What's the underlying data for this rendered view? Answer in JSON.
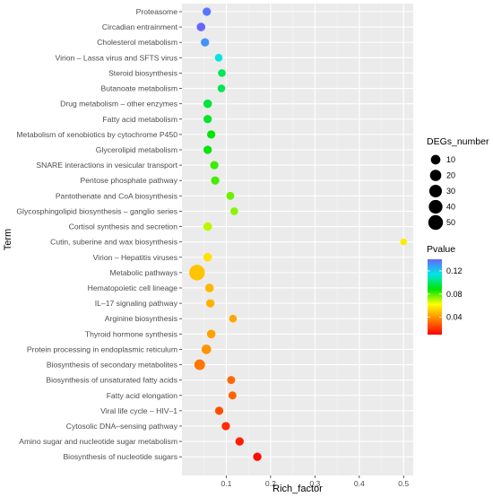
{
  "chart_data": {
    "type": "scatter",
    "title": "",
    "xlabel": "Rich_factor",
    "ylabel": "Term",
    "xlim": [
      0.0,
      0.51
    ],
    "x_ticks": [
      0.1,
      0.2,
      0.3,
      0.4,
      0.5
    ],
    "x_tick_labels": [
      "0.1",
      "0.2",
      "0.3",
      "0.4",
      "0.5"
    ],
    "grid": true,
    "legend_placement": "right",
    "size_legend": {
      "title": "DEGs_number",
      "values": [
        10,
        20,
        30,
        40,
        50
      ],
      "labels": [
        "10",
        "20",
        "30",
        "40",
        "50"
      ]
    },
    "color_legend": {
      "title": "Pvalue",
      "range": [
        0.01,
        0.14
      ],
      "ticks": [
        0.04,
        0.08,
        0.12
      ],
      "tick_labels": [
        "0.04",
        "0.08",
        "0.12"
      ],
      "colors": [
        "#ff0000",
        "#ff8000",
        "#ffff00",
        "#00e600",
        "#00e6e6",
        "#6666ff"
      ]
    },
    "points": [
      {
        "term": "Proteasome",
        "x": 0.056,
        "degs": 5,
        "pvalue": 0.137
      },
      {
        "term": "Circadian entrainment",
        "x": 0.043,
        "degs": 6,
        "pvalue": 0.141
      },
      {
        "term": "Cholesterol metabolism",
        "x": 0.052,
        "degs": 5,
        "pvalue": 0.131
      },
      {
        "term": "Virion – Lassa virus and SFTS virus",
        "x": 0.083,
        "degs": 3,
        "pvalue": 0.113
      },
      {
        "term": "Steroid biosynthesis",
        "x": 0.09,
        "degs": 3,
        "pvalue": 0.098
      },
      {
        "term": "Butanoate metabolism",
        "x": 0.089,
        "degs": 3,
        "pvalue": 0.097
      },
      {
        "term": "Drug metabolism – other enzymes",
        "x": 0.058,
        "degs": 6,
        "pvalue": 0.095
      },
      {
        "term": "Fatty acid metabolism",
        "x": 0.058,
        "degs": 5,
        "pvalue": 0.093
      },
      {
        "term": "Metabolism of xenobiotics by cytochrome P450",
        "x": 0.066,
        "degs": 5,
        "pvalue": 0.088
      },
      {
        "term": "Glycerolipid metabolism",
        "x": 0.058,
        "degs": 5,
        "pvalue": 0.089
      },
      {
        "term": "SNARE interactions in vesicular transport",
        "x": 0.073,
        "degs": 5,
        "pvalue": 0.082
      },
      {
        "term": "Pentose phosphate pathway",
        "x": 0.075,
        "degs": 5,
        "pvalue": 0.081
      },
      {
        "term": "Pantothenate and CoA biosynthesis",
        "x": 0.109,
        "degs": 4,
        "pvalue": 0.077
      },
      {
        "term": "Glycosphingolipid biosynthesis – ganglio series",
        "x": 0.118,
        "degs": 3,
        "pvalue": 0.074
      },
      {
        "term": "Cortisol synthesis and secretion",
        "x": 0.058,
        "degs": 6,
        "pvalue": 0.069
      },
      {
        "term": "Cutin, suberine and wax biosynthesis",
        "x": 0.5,
        "degs": 1,
        "pvalue": 0.058
      },
      {
        "term": "Virion – Hepatitis viruses",
        "x": 0.058,
        "degs": 6,
        "pvalue": 0.056
      },
      {
        "term": "Metabolic pathways",
        "x": 0.034,
        "degs": 60,
        "pvalue": 0.05
      },
      {
        "term": "Hematopoietic cell lineage",
        "x": 0.062,
        "degs": 6,
        "pvalue": 0.047
      },
      {
        "term": "IL–17 signaling pathway",
        "x": 0.064,
        "degs": 5,
        "pvalue": 0.046
      },
      {
        "term": "Arginine biosynthesis",
        "x": 0.115,
        "degs": 3,
        "pvalue": 0.044
      },
      {
        "term": "Thyroid hormone synthesis",
        "x": 0.066,
        "degs": 6,
        "pvalue": 0.043
      },
      {
        "term": "Protein processing in endoplasmic reticulum",
        "x": 0.055,
        "degs": 10,
        "pvalue": 0.04
      },
      {
        "term": "Biosynthesis of secondary metabolites",
        "x": 0.04,
        "degs": 16,
        "pvalue": 0.034
      },
      {
        "term": "Biosynthesis of unsaturated fatty acids",
        "x": 0.111,
        "degs": 4,
        "pvalue": 0.031
      },
      {
        "term": "Fatty acid elongation",
        "x": 0.114,
        "degs": 4,
        "pvalue": 0.03
      },
      {
        "term": "Viral life cycle – HIV–1",
        "x": 0.084,
        "degs": 5,
        "pvalue": 0.026
      },
      {
        "term": "Cytosolic DNA–sensing pathway",
        "x": 0.099,
        "degs": 5,
        "pvalue": 0.019
      },
      {
        "term": "Amino sugar and nucleotide sugar metabolism",
        "x": 0.13,
        "degs": 5,
        "pvalue": 0.016
      },
      {
        "term": "Biosynthesis of nucleotide sugars",
        "x": 0.17,
        "degs": 5,
        "pvalue": 0.012
      }
    ]
  }
}
